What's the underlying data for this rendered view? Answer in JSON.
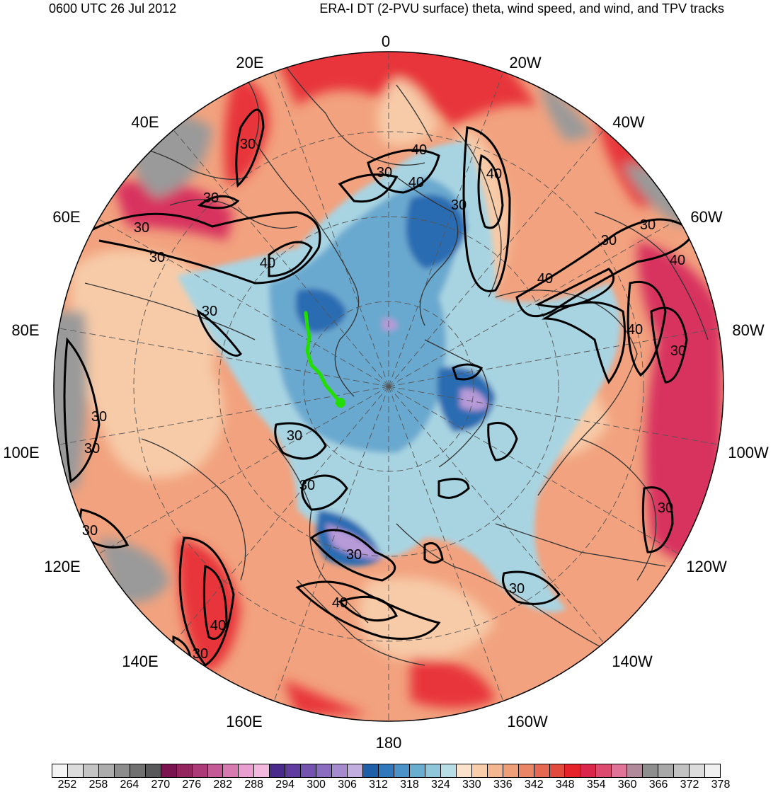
{
  "header": {
    "left": "0600 UTC 26 Jul 2012",
    "right": "ERA-I DT (2-PVU surface) theta, wind speed, and wind, and TPV tracks"
  },
  "longitude_labels": [
    "0",
    "20W",
    "40W",
    "60W",
    "80W",
    "100W",
    "120W",
    "140W",
    "160W",
    "180",
    "160E",
    "140E",
    "120E",
    "100E",
    "80E",
    "60E",
    "40E",
    "20E"
  ],
  "contour_labels": [
    "30",
    "40"
  ],
  "colorbar": {
    "labels": [
      "252",
      "258",
      "264",
      "270",
      "276",
      "282",
      "288",
      "294",
      "300",
      "306",
      "312",
      "318",
      "324",
      "330",
      "336",
      "342",
      "348",
      "354",
      "360",
      "366",
      "372",
      "378"
    ],
    "colors": [
      "#f4f4f4",
      "#dcdcdc",
      "#c4c4c4",
      "#acacac",
      "#8c8c8c",
      "#707070",
      "#58585a",
      "#7a1450",
      "#94245e",
      "#ad3a78",
      "#c35a96",
      "#d77ab2",
      "#e89ece",
      "#f3b8e0",
      "#4a2a8a",
      "#5f3c9e",
      "#7352b0",
      "#8a6cc0",
      "#a68ad0",
      "#c3aee0",
      "#1f5fa8",
      "#2f78bc",
      "#4a92c8",
      "#6aaecf",
      "#8fc6d9",
      "#b7dde5",
      "#fbe3cb",
      "#f7cdac",
      "#f3b690",
      "#ef9f78",
      "#ea8566",
      "#e46852",
      "#e24a3e",
      "#e5222a",
      "#d9264a",
      "#dd4a70",
      "#e07498",
      "#b08a9a",
      "#8e8e8e",
      "#a8a8a8",
      "#c2c2c2",
      "#dcdcdc",
      "#f0f0f0"
    ]
  },
  "tpv_track_color": "#22dd00",
  "contour_color": "#000000",
  "map_colors": {
    "warm_base": "#f2a27e",
    "warm_light": "#f7cba8",
    "hot": "#e8363a",
    "magenta": "#d8325e",
    "gray": "#9a9a9a",
    "cold_light": "#a8d4e2",
    "cold_mid": "#6aa9cf",
    "cold_deep": "#2a6cb2",
    "lavender": "#b79ad8",
    "coast": "#333333"
  }
}
